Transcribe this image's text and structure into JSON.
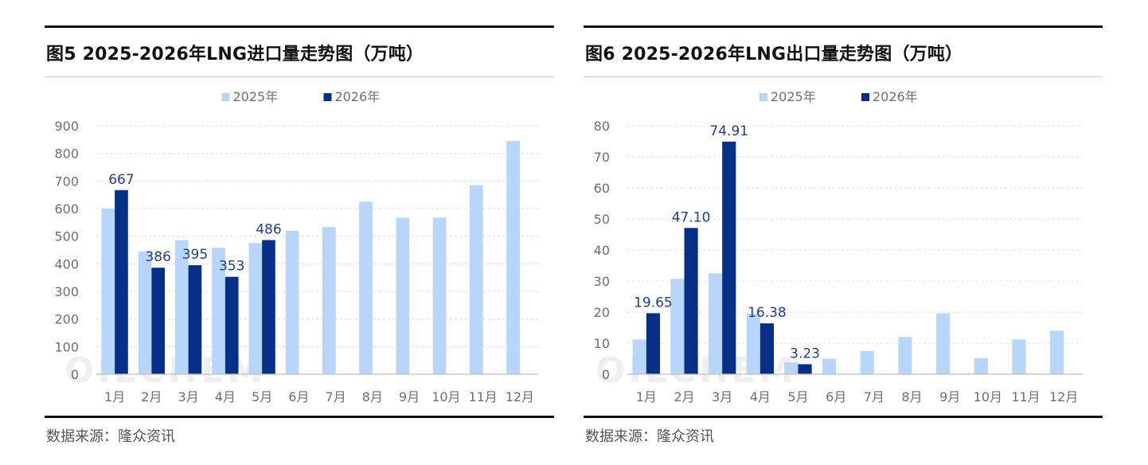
{
  "colors": {
    "series_2025": "#b8d5fb",
    "series_2026": "#063087",
    "label": "#1f3f8f",
    "axis_text": "#6f6f6f",
    "grid": "#dcdcdc",
    "axis": "#bfbfbf"
  },
  "watermark": "OILCHEM",
  "panels": [
    {
      "title": "图5 2025-2026年LNG进口量走势图（万吨）",
      "source": "数据来源：隆众资讯",
      "chart_data": {
        "type": "bar",
        "categories": [
          "1月",
          "2月",
          "3月",
          "4月",
          "5月",
          "6月",
          "7月",
          "8月",
          "9月",
          "10月",
          "11月",
          "12月"
        ],
        "ylim": [
          0,
          900
        ],
        "yticks": [
          0,
          100,
          200,
          300,
          400,
          500,
          600,
          700,
          800,
          900
        ],
        "ytick_labels": [
          "0",
          "100",
          "200",
          "300",
          "400",
          "500",
          "600",
          "700",
          "800",
          "900"
        ],
        "grid": true,
        "legend_position": "top-center",
        "series": [
          {
            "name": "2025年",
            "values": [
              600,
              445,
              485,
              458,
              475,
              520,
              533,
              625,
              567,
              567,
              685,
              845
            ],
            "labels": []
          },
          {
            "name": "2026年",
            "values": [
              667,
              386,
              395,
              353,
              486,
              null,
              null,
              null,
              null,
              null,
              null,
              null
            ],
            "labels": [
              "667",
              "386",
              "395",
              "353",
              "486"
            ]
          }
        ]
      }
    },
    {
      "title": "图6 2025-2026年LNG出口量走势图（万吨）",
      "source": "数据来源：隆众资讯",
      "chart_data": {
        "type": "bar",
        "categories": [
          "1月",
          "2月",
          "3月",
          "4月",
          "5月",
          "6月",
          "7月",
          "8月",
          "9月",
          "10月",
          "11月",
          "12月"
        ],
        "ylim": [
          0,
          80
        ],
        "yticks": [
          0,
          10,
          20,
          30,
          40,
          50,
          60,
          70,
          80
        ],
        "ytick_labels": [
          "0",
          "10",
          "20",
          "30",
          "40",
          "50",
          "60",
          "70",
          "80"
        ],
        "grid": true,
        "legend_position": "top-center",
        "series": [
          {
            "name": "2025年",
            "values": [
              11.2,
              30.7,
              32.5,
              19.5,
              3.8,
              5.0,
              7.5,
              12.0,
              19.6,
              5.2,
              11.2,
              14.0
            ],
            "labels": []
          },
          {
            "name": "2026年",
            "values": [
              19.65,
              47.1,
              74.91,
              16.38,
              3.23,
              null,
              null,
              null,
              null,
              null,
              null,
              null
            ],
            "labels": [
              "19.65",
              "47.10",
              "74.91",
              "16.38",
              "3.23"
            ]
          }
        ]
      }
    }
  ]
}
